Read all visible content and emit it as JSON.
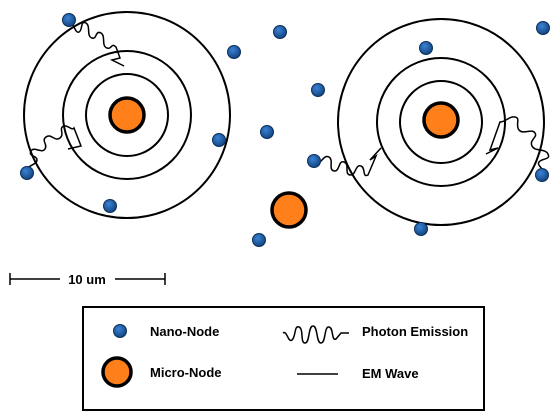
{
  "scale_bar": {
    "label": "10 um"
  },
  "legend": {
    "nano_node_label": "Nano-Node",
    "micro_node_label": "Micro-Node",
    "photon_label": "Photon Emission",
    "em_wave_label": "EM Wave"
  },
  "colors": {
    "nano_node_fill": "#1f5fa8",
    "micro_node_fill": "#ff7f1a",
    "stroke": "#000000"
  }
}
